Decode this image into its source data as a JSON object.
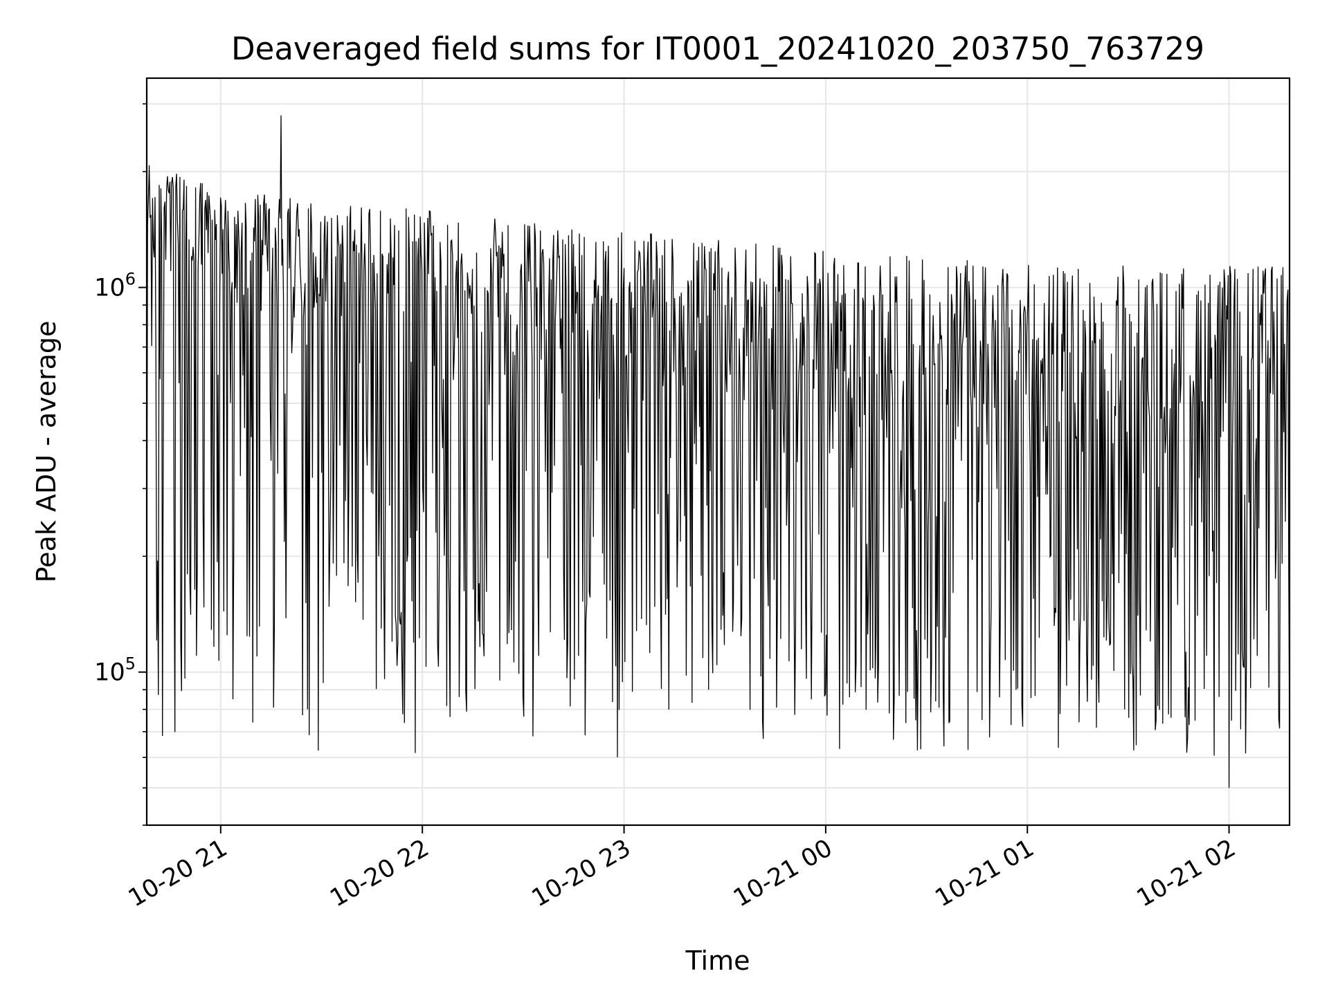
{
  "chart_data": {
    "type": "line",
    "title": "Deaveraged field sums for IT0001_20241020_203750_763729",
    "xlabel": "Time",
    "ylabel": "Peak ADU - average",
    "x_axis": {
      "type": "time",
      "start": "2024-10-20 20:38",
      "end": "2024-10-21 02:18",
      "ticks": [
        "10-20 21",
        "10-20 22",
        "10-20 23",
        "10-21 00",
        "10-21 01",
        "10-21 02"
      ]
    },
    "y_axis": {
      "scale": "log",
      "ylim": [
        40000,
        3500000
      ],
      "tick_labels": [
        {
          "base": "10",
          "exp": "5",
          "value": 100000
        },
        {
          "base": "10",
          "exp": "6",
          "value": 1000000
        }
      ]
    },
    "grid": true,
    "line_color": "#000000",
    "series": [
      {
        "x_range": [
          "2024-10-20 20:38",
          "2024-10-21 02:18"
        ],
        "n_points": 1380,
        "y_typical_range": [
          60000,
          2800000
        ],
        "y_extremes": {
          "max": 2800000,
          "max_time": "2024-10-20 21:18",
          "min": 50000,
          "min_time": "2024-10-21 02:00"
        },
        "trend_upper_envelope": [
          {
            "time": "2024-10-20 20:40",
            "y": 2100000
          },
          {
            "time": "2024-10-20 21:00",
            "y": 1800000
          },
          {
            "time": "2024-10-20 22:00",
            "y": 1600000
          },
          {
            "time": "2024-10-20 23:00",
            "y": 1400000
          },
          {
            "time": "2024-10-21 00:00",
            "y": 1250000
          },
          {
            "time": "2024-10-21 01:00",
            "y": 1150000
          },
          {
            "time": "2024-10-21 02:00",
            "y": 1150000
          }
        ],
        "trend_median": [
          {
            "time": "2024-10-20 20:40",
            "y": 1000000
          },
          {
            "time": "2024-10-20 21:00",
            "y": 900000
          },
          {
            "time": "2024-10-20 22:00",
            "y": 700000
          },
          {
            "time": "2024-10-20 23:00",
            "y": 550000
          },
          {
            "time": "2024-10-21 00:00",
            "y": 400000
          },
          {
            "time": "2024-10-21 01:00",
            "y": 320000
          },
          {
            "time": "2024-10-21 02:00",
            "y": 300000
          }
        ]
      }
    ]
  }
}
